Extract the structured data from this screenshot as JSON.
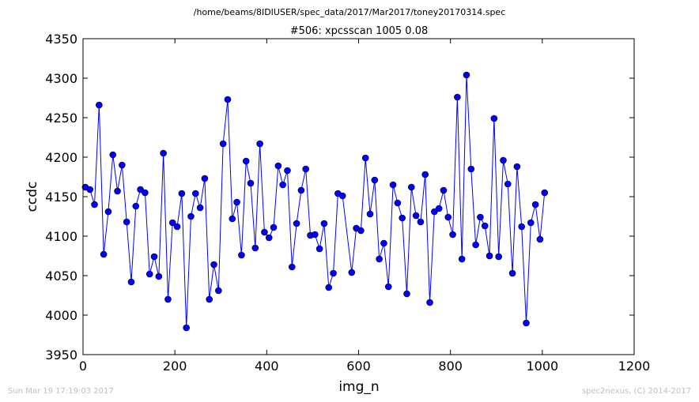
{
  "chart_data": {
    "type": "line",
    "suptitle": "/home/beams/8IDIUSER/spec_data/2017/Mar2017/toney20170314.spec",
    "title": "#506: xpcsscan 1005 0.08",
    "xlabel": "img_n",
    "ylabel": "ccdc",
    "xlim": [
      0,
      1200
    ],
    "ylim": [
      3950,
      4350
    ],
    "xticks": [
      "0",
      "200",
      "400",
      "600",
      "800",
      "1000",
      "1200"
    ],
    "yticks": [
      "3950",
      "4000",
      "4050",
      "4100",
      "4150",
      "4200",
      "4250",
      "4300",
      "4350"
    ],
    "grid": false,
    "line_color": "#0000ff",
    "marker_color": "#0000ff",
    "series": [
      {
        "x": [
          5,
          15,
          25,
          35,
          45,
          55,
          65,
          75,
          85,
          95,
          105,
          115,
          125,
          135,
          145,
          155,
          165,
          175,
          185,
          195,
          205,
          215,
          225,
          235,
          245,
          255,
          265,
          275,
          285,
          295,
          305,
          315,
          325,
          335,
          345,
          355,
          365,
          375,
          385,
          395,
          405,
          415,
          425,
          435,
          445,
          455,
          465,
          475,
          485,
          495,
          505,
          515,
          525,
          535,
          545,
          555,
          565,
          585,
          595,
          605,
          615,
          625,
          635,
          645,
          655,
          665,
          675,
          685,
          695,
          705,
          715,
          725,
          735,
          745,
          755,
          765,
          775,
          785,
          795,
          805,
          815,
          825,
          835,
          845,
          855,
          865,
          875,
          885,
          895,
          905,
          915,
          925,
          935,
          945,
          955,
          965,
          975,
          985,
          995,
          1005
        ],
        "y": [
          4162,
          4159,
          4140,
          4266,
          4077,
          4131,
          4203,
          4157,
          4190,
          4118,
          4042,
          4138,
          4159,
          4155,
          4052,
          4074,
          4049,
          4205,
          4020,
          4117,
          4112,
          4154,
          3984,
          4125,
          4154,
          4136,
          4173,
          4020,
          4064,
          4031,
          4217,
          4273,
          4122,
          4143,
          4076,
          4195,
          4167,
          4085,
          4217,
          4105,
          4098,
          4111,
          4189,
          4165,
          4183,
          4061,
          4116,
          4158,
          4185,
          4101,
          4102,
          4084,
          4116,
          4035,
          4053,
          4154,
          4151,
          4054,
          4110,
          4107,
          4199,
          4128,
          4171,
          4071,
          4091,
          4036,
          4165,
          4142,
          4123,
          4027,
          4162,
          4126,
          4118,
          4178,
          4016,
          4131,
          4135,
          4158,
          4124,
          4102,
          4276,
          4071,
          4304,
          4185,
          4089,
          4124,
          4113,
          4075,
          4249,
          4074,
          4196,
          4166,
          4053,
          4188,
          4112,
          3990,
          4117,
          4140,
          4096,
          4155
        ]
      }
    ]
  },
  "footer": {
    "timestamp": "Sun Mar 19 17:19:03 2017",
    "credit": "spec2nexus, (C) 2014-2017"
  }
}
